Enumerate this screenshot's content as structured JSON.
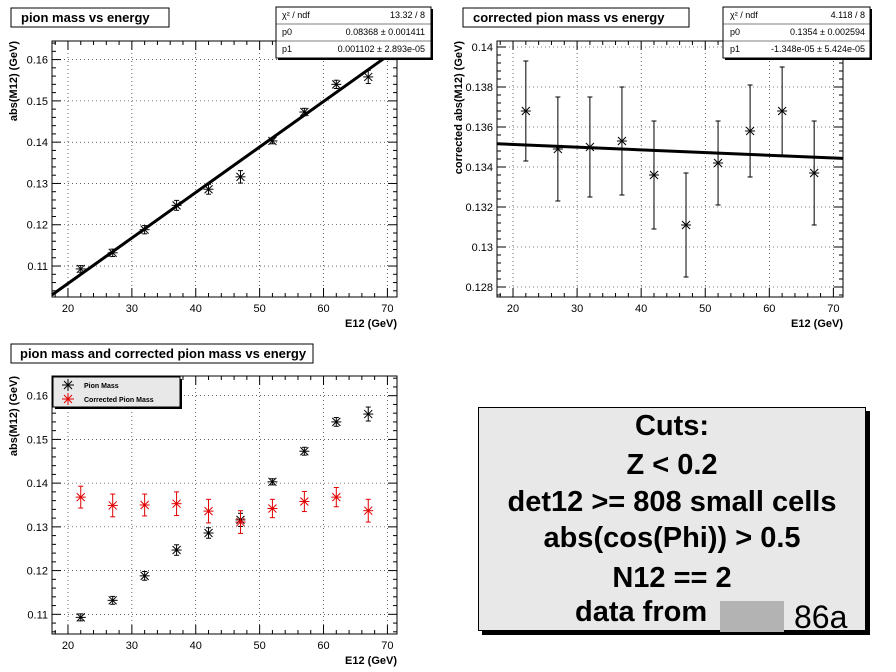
{
  "chart_data": [
    {
      "type": "scatter",
      "title": "pion mass vs energy",
      "xlabel": "E12 (GeV)",
      "ylabel": "abs(M12) (GeV)",
      "xlim": [
        17.5,
        71.5
      ],
      "ylim": [
        0.1025,
        0.1645
      ],
      "xticks": [
        20,
        30,
        40,
        50,
        60,
        70
      ],
      "yticks": [
        0.11,
        0.12,
        0.13,
        0.14,
        0.15,
        0.16
      ],
      "ytick_labels": [
        "0.11",
        "0.12",
        "0.13",
        "0.14",
        "0.15",
        "0.16"
      ],
      "grid": true,
      "series": [
        {
          "x": [
            22,
            27,
            32,
            37,
            42,
            47,
            52,
            57,
            62,
            67
          ],
          "y": [
            0.1093,
            0.1132,
            0.1188,
            0.1247,
            0.1286,
            0.1316,
            0.1403,
            0.1473,
            0.154,
            0.1558
          ],
          "yerr": [
            0.0008,
            0.0009,
            0.001,
            0.0012,
            0.0012,
            0.0015,
            0.0007,
            0.0009,
            0.001,
            0.0016
          ],
          "color": "#000000"
        }
      ],
      "fit_line": {
        "x": [
          17.5,
          71.5
        ],
        "y": [
          0.10302,
          0.16253
        ],
        "color": "#000000"
      },
      "stats": {
        "rows": [
          {
            "label": "χ² / ndf",
            "value": "13.32 / 8"
          },
          {
            "label": "p0",
            "value": "0.08368 ± 0.001411"
          },
          {
            "label": "p1",
            "value": "0.001102 ± 2.893e-05"
          }
        ]
      }
    },
    {
      "type": "scatter",
      "title": "corrected pion mass vs energy",
      "xlabel": "E12 (GeV)",
      "ylabel": "corrected abs(M12) (GeV)",
      "xlim": [
        17.5,
        71.5
      ],
      "ylim": [
        0.1275,
        0.1403
      ],
      "xticks": [
        20,
        30,
        40,
        50,
        60,
        70
      ],
      "yticks": [
        0.128,
        0.13,
        0.132,
        0.134,
        0.136,
        0.138,
        0.14
      ],
      "ytick_labels": [
        "0.128",
        "0.13",
        "0.132",
        "0.134",
        "0.136",
        "0.138",
        "0.14"
      ],
      "grid": true,
      "series": [
        {
          "x": [
            22,
            27,
            32,
            37,
            42,
            47,
            52,
            57,
            62,
            67
          ],
          "y": [
            0.1368,
            0.1349,
            0.135,
            0.1353,
            0.1336,
            0.1311,
            0.1342,
            0.1358,
            0.1368,
            0.1337
          ],
          "yerr": [
            0.0025,
            0.0026,
            0.0025,
            0.0027,
            0.0027,
            0.0026,
            0.0021,
            0.0023,
            0.0022,
            0.0026
          ],
          "color": "#000000"
        }
      ],
      "fit_line": {
        "x": [
          17.5,
          71.5
        ],
        "y": [
          0.13516,
          0.13443
        ],
        "color": "#000000"
      },
      "stats": {
        "rows": [
          {
            "label": "χ² / ndf",
            "value": "4.118 / 8"
          },
          {
            "label": "p0",
            "value": "0.1354 ± 0.002594"
          },
          {
            "label": "p1",
            "value": "-1.348e-05 ± 5.424e-05"
          }
        ]
      }
    },
    {
      "type": "scatter",
      "title": "pion mass and corrected pion mass vs energy",
      "xlabel": "E12 (GeV)",
      "ylabel": "abs(M12) (GeV)",
      "xlim": [
        17.5,
        71.5
      ],
      "ylim": [
        0.1055,
        0.1645
      ],
      "xticks": [
        20,
        30,
        40,
        50,
        60,
        70
      ],
      "yticks": [
        0.11,
        0.12,
        0.13,
        0.14,
        0.15,
        0.16
      ],
      "ytick_labels": [
        "0.11",
        "0.12",
        "0.13",
        "0.14",
        "0.15",
        "0.16"
      ],
      "grid": true,
      "legend_position": "top-left",
      "series": [
        {
          "name": "Pion Mass",
          "x": [
            22,
            27,
            32,
            37,
            42,
            47,
            52,
            57,
            62,
            67
          ],
          "y": [
            0.1093,
            0.1132,
            0.1188,
            0.1247,
            0.1286,
            0.1316,
            0.1403,
            0.1473,
            0.154,
            0.1558
          ],
          "yerr": [
            0.0008,
            0.0009,
            0.001,
            0.0012,
            0.0012,
            0.0015,
            0.0007,
            0.0009,
            0.001,
            0.0016
          ],
          "color": "#000000"
        },
        {
          "name": "Corrected Pion Mass",
          "x": [
            22,
            27,
            32,
            37,
            42,
            47,
            52,
            57,
            62,
            67
          ],
          "y": [
            0.1368,
            0.1349,
            0.135,
            0.1353,
            0.1336,
            0.1311,
            0.1342,
            0.1358,
            0.1368,
            0.1337
          ],
          "yerr": [
            0.0025,
            0.0026,
            0.0025,
            0.0027,
            0.0027,
            0.0026,
            0.0021,
            0.0023,
            0.0022,
            0.0026
          ],
          "color": "#e00000"
        }
      ]
    }
  ],
  "cuts": {
    "lines": [
      "Cuts:",
      "Z < 0.2",
      "det12 >= 808 small cells",
      "abs(cos(Phi)) > 0.5",
      "N12 == 2"
    ],
    "data_from_label": "data from",
    "run_suffix": "86a"
  }
}
